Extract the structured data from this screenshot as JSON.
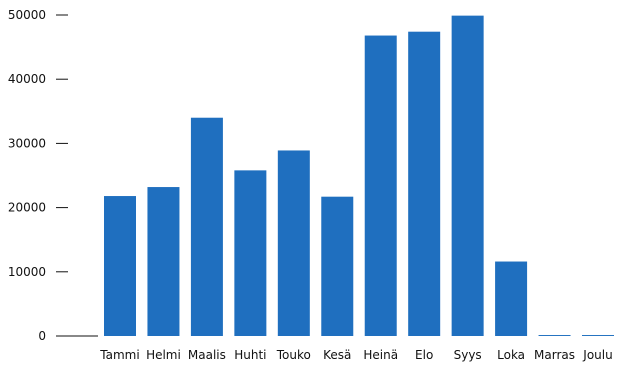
{
  "chart_data": {
    "type": "bar",
    "categories": [
      "Tammi",
      "Helmi",
      "Maalis",
      "Huhti",
      "Touko",
      "Kesä",
      "Heinä",
      "Elo",
      "Syys",
      "Loka",
      "Marras",
      "Joulu"
    ],
    "values": [
      21800,
      23200,
      34000,
      25800,
      28900,
      21700,
      46800,
      47400,
      49900,
      11600,
      150,
      150
    ],
    "title": "",
    "xlabel": "",
    "ylabel": "",
    "ylim": [
      0,
      50000
    ],
    "yticks": [
      0,
      10000,
      20000,
      30000,
      40000,
      50000
    ],
    "grid": false,
    "bar_color": "#1f6fbf"
  }
}
